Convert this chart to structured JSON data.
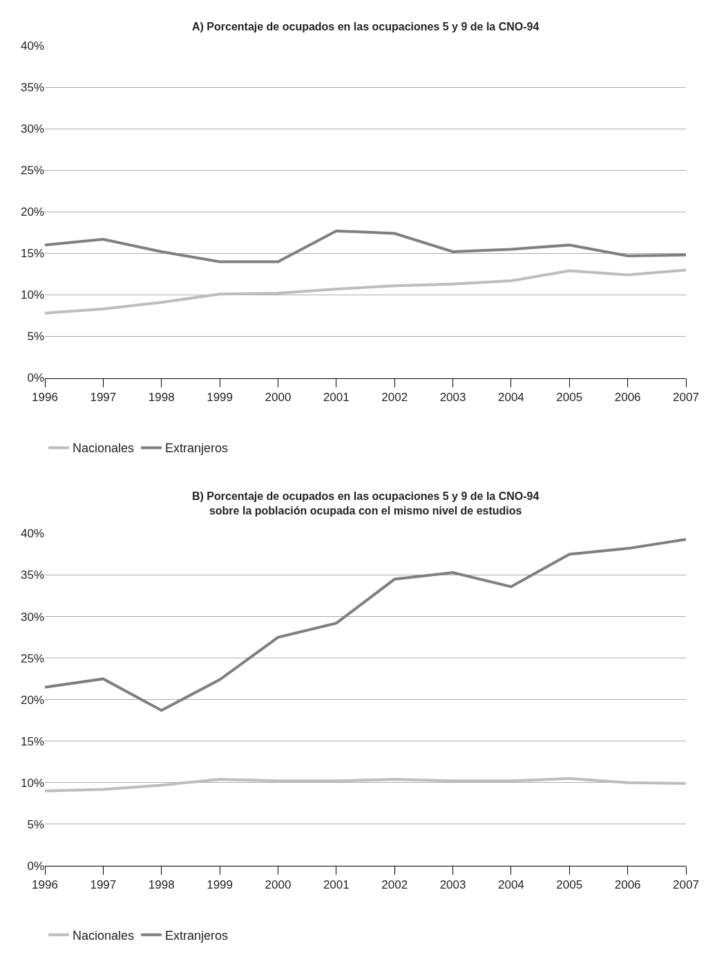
{
  "chart_data": [
    {
      "type": "line",
      "title": "A) Porcentaje de ocupados en las ocupaciones 5 y 9 de la CNO-94",
      "categories": [
        "1996",
        "1997",
        "1998",
        "1999",
        "2000",
        "2001",
        "2002",
        "2003",
        "2004",
        "2005",
        "2006",
        "2007"
      ],
      "series": [
        {
          "name": "Nacionales",
          "color": "#bdbdbd",
          "values": [
            7.8,
            8.3,
            9.1,
            10.1,
            10.2,
            10.7,
            11.1,
            11.3,
            11.7,
            12.9,
            12.4,
            13.0
          ]
        },
        {
          "name": "Extranjeros",
          "color": "#7f7f7f",
          "values": [
            16.0,
            16.7,
            15.2,
            14.0,
            14.0,
            17.7,
            17.4,
            15.2,
            15.5,
            16.0,
            14.7,
            14.8
          ]
        }
      ],
      "ylim": [
        0,
        40
      ],
      "yticks": [
        {
          "value": 0,
          "label": "0%"
        },
        {
          "value": 5,
          "label": "5%"
        },
        {
          "value": 10,
          "label": "10%"
        },
        {
          "value": 15,
          "label": "15%"
        },
        {
          "value": 20,
          "label": "20%"
        },
        {
          "value": 25,
          "label": "25%"
        },
        {
          "value": 30,
          "label": "30%"
        },
        {
          "value": 35,
          "label": "35%"
        },
        {
          "value": 40,
          "label": "40%"
        }
      ],
      "grid": "y",
      "legend": "bottom left",
      "marker": "none",
      "line_style": "solid"
    },
    {
      "type": "line",
      "title": "B) Porcentaje de ocupados en las ocupaciones 5 y 9 de la CNO-94\nsobre la población ocupada con el mismo nivel de estudios",
      "categories": [
        "1996",
        "1997",
        "1998",
        "1999",
        "2000",
        "2001",
        "2002",
        "2003",
        "2004",
        "2005",
        "2006",
        "2007"
      ],
      "series": [
        {
          "name": "Nacionales",
          "color": "#bdbdbd",
          "values": [
            9.0,
            9.2,
            9.7,
            10.4,
            10.2,
            10.2,
            10.4,
            10.2,
            10.2,
            10.5,
            10.0,
            9.9
          ]
        },
        {
          "name": "Extranjeros",
          "color": "#7f7f7f",
          "values": [
            21.5,
            22.5,
            18.7,
            22.4,
            27.5,
            29.2,
            34.5,
            35.3,
            33.6,
            37.5,
            38.2,
            39.3
          ]
        }
      ],
      "ylim": [
        0,
        40
      ],
      "yticks": [
        {
          "value": 0,
          "label": "0%"
        },
        {
          "value": 5,
          "label": "5%"
        },
        {
          "value": 10,
          "label": "10%"
        },
        {
          "value": 15,
          "label": "15%"
        },
        {
          "value": 20,
          "label": "20%"
        },
        {
          "value": 25,
          "label": "25%"
        },
        {
          "value": 30,
          "label": "30%"
        },
        {
          "value": 35,
          "label": "35%"
        },
        {
          "value": 40,
          "label": "40%"
        }
      ],
      "grid": "y",
      "legend": "bottom left",
      "marker": "none",
      "line_style": "solid"
    }
  ]
}
